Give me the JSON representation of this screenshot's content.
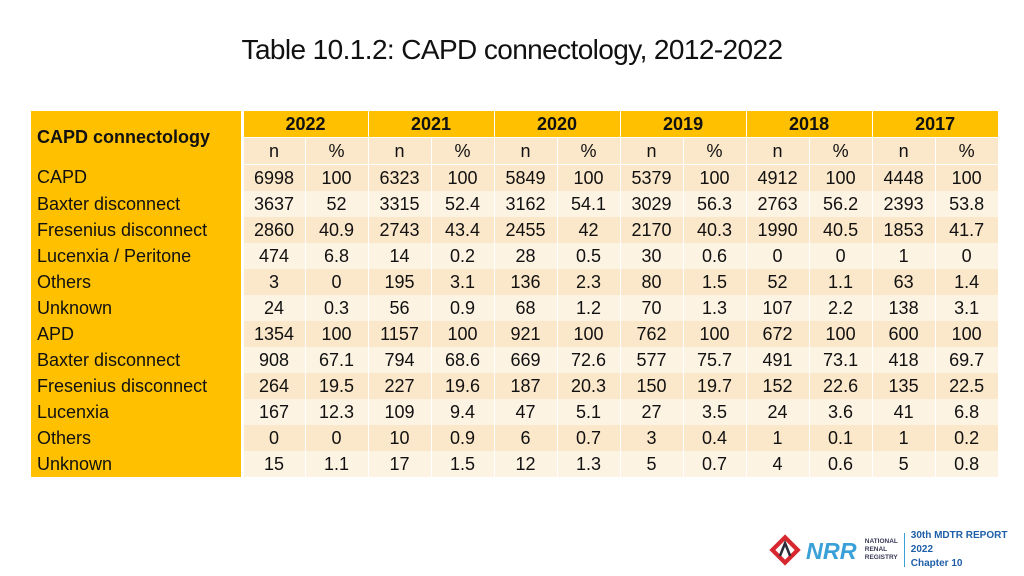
{
  "title": "Table 10.1.2: CAPD connectology, 2012-2022",
  "table": {
    "corner_label": "CAPD connectology",
    "years": [
      "2022",
      "2021",
      "2020",
      "2019",
      "2018",
      "2017"
    ],
    "sub_headers": [
      "n",
      "%"
    ],
    "rows": [
      {
        "label": "CAPD",
        "values": [
          "6998",
          "100",
          "6323",
          "100",
          "5849",
          "100",
          "5379",
          "100",
          "4912",
          "100",
          "4448",
          "100"
        ]
      },
      {
        "label": "Baxter disconnect",
        "values": [
          "3637",
          "52",
          "3315",
          "52.4",
          "3162",
          "54.1",
          "3029",
          "56.3",
          "2763",
          "56.2",
          "2393",
          "53.8"
        ]
      },
      {
        "label": "Fresenius disconnect",
        "values": [
          "2860",
          "40.9",
          "2743",
          "43.4",
          "2455",
          "42",
          "2170",
          "40.3",
          "1990",
          "40.5",
          "1853",
          "41.7"
        ]
      },
      {
        "label": "Lucenxia / Peritone",
        "values": [
          "474",
          "6.8",
          "14",
          "0.2",
          "28",
          "0.5",
          "30",
          "0.6",
          "0",
          "0",
          "1",
          "0"
        ]
      },
      {
        "label": "Others",
        "values": [
          "3",
          "0",
          "195",
          "3.1",
          "136",
          "2.3",
          "80",
          "1.5",
          "52",
          "1.1",
          "63",
          "1.4"
        ]
      },
      {
        "label": "Unknown",
        "values": [
          "24",
          "0.3",
          "56",
          "0.9",
          "68",
          "1.2",
          "70",
          "1.3",
          "107",
          "2.2",
          "138",
          "3.1"
        ]
      },
      {
        "label": "APD",
        "values": [
          "1354",
          "100",
          "1157",
          "100",
          "921",
          "100",
          "762",
          "100",
          "672",
          "100",
          "600",
          "100"
        ]
      },
      {
        "label": "Baxter disconnect",
        "values": [
          "908",
          "67.1",
          "794",
          "68.6",
          "669",
          "72.6",
          "577",
          "75.7",
          "491",
          "73.1",
          "418",
          "69.7"
        ]
      },
      {
        "label": "Fresenius disconnect",
        "values": [
          "264",
          "19.5",
          "227",
          "19.6",
          "187",
          "20.3",
          "150",
          "19.7",
          "152",
          "22.6",
          "135",
          "22.5"
        ]
      },
      {
        "label": "Lucenxia",
        "values": [
          "167",
          "12.3",
          "109",
          "9.4",
          "47",
          "5.1",
          "27",
          "3.5",
          "24",
          "3.6",
          "41",
          "6.8"
        ]
      },
      {
        "label": "Others",
        "values": [
          "0",
          "0",
          "10",
          "0.9",
          "6",
          "0.7",
          "3",
          "0.4",
          "1",
          "0.1",
          "1",
          "0.2"
        ]
      },
      {
        "label": "Unknown",
        "values": [
          "15",
          "1.1",
          "17",
          "1.5",
          "12",
          "1.3",
          "5",
          "0.7",
          "4",
          "0.6",
          "5",
          "0.8"
        ]
      }
    ]
  },
  "footer": {
    "logo_text": "NRR",
    "registry_name": [
      "NATIONAL",
      "RENAL",
      "REGISTRY"
    ],
    "report_title": "30th MDTR REPORT 2022",
    "chapter": "Chapter 10"
  },
  "colors": {
    "header": "#ffc000",
    "cell_dark": "#fbe7c9",
    "cell_light": "#fdf3e3",
    "logo_red": "#d7282f",
    "logo_blue": "#1f5ea8"
  }
}
